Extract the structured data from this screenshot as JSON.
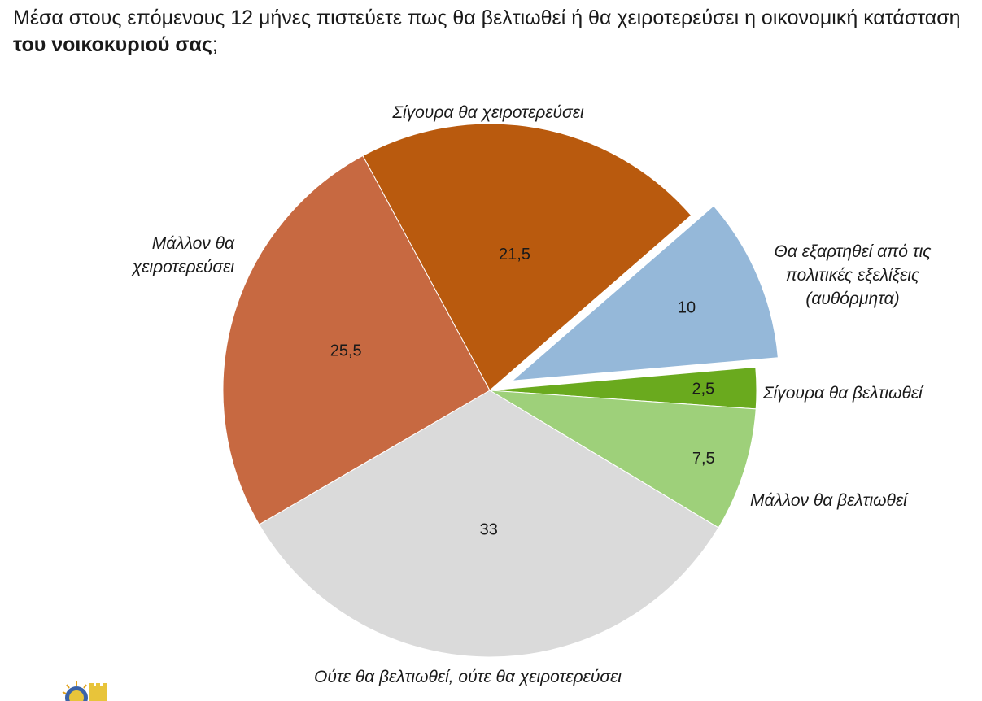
{
  "question": {
    "text_part1": "Μέσα στους επόμενους 12 μήνες πιστεύετε πως θα βελτιωθεί ή θα χειροτερεύσει η οικονομική κατάσταση ",
    "text_bold": "του νοικοκυριού σας",
    "text_part2": ";"
  },
  "chart_data": {
    "type": "pie",
    "start_angle_deg": 90,
    "direction": "clockwise",
    "slices": [
      {
        "label": [
          "Σίγουρα θα βελτιωθεί"
        ],
        "value": 2.5,
        "value_label": "2,5",
        "color": "#6aaa1e",
        "exploded": false
      },
      {
        "label": [
          "Μάλλον θα βελτιωθεί"
        ],
        "value": 7.5,
        "value_label": "7,5",
        "color": "#9ed07a",
        "exploded": false
      },
      {
        "label": [
          "Ούτε θα βελτιωθεί, ούτε θα χειροτερεύσει"
        ],
        "value": 33,
        "value_label": "33",
        "color": "#dadada",
        "exploded": false
      },
      {
        "label": [
          "Μάλλον θα",
          "χειροτερεύσει"
        ],
        "value": 25.5,
        "value_label": "25,5",
        "color": "#c76941",
        "exploded": false
      },
      {
        "label": [
          "Σίγουρα θα χειροτερεύσει"
        ],
        "value": 21.5,
        "value_label": "21,5",
        "color": "#b95a0e",
        "exploded": false
      },
      {
        "label": [
          "Θα εξαρτηθεί από τις",
          "πολιτικές εξελίξεις",
          "(αυθόρμητα)"
        ],
        "value": 10,
        "value_label": "10",
        "color": "#95b8d9",
        "exploded": true
      }
    ]
  }
}
